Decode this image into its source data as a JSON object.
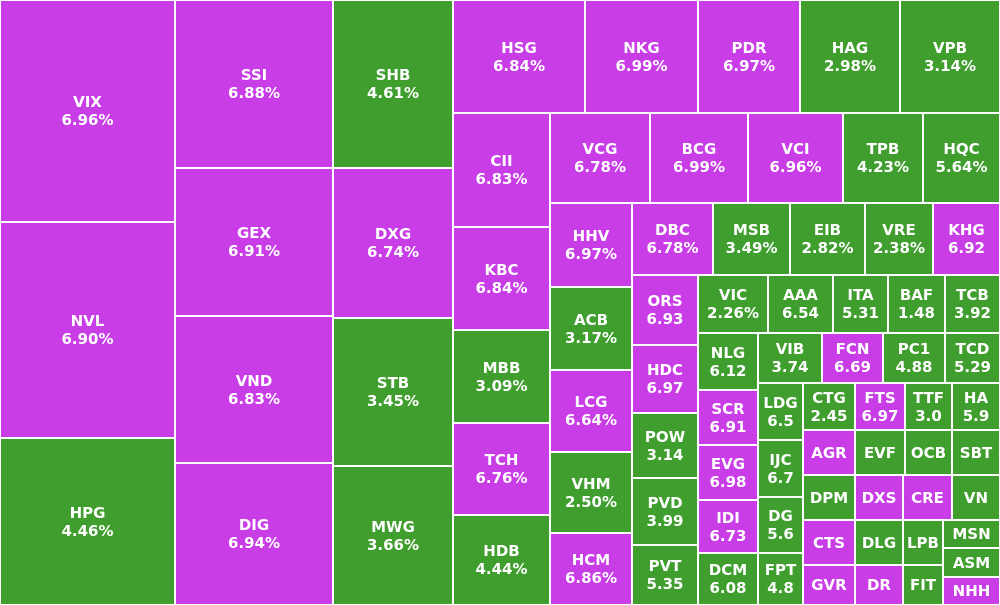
{
  "tiles": [
    {
      "name": "VIX",
      "change": "6.96%",
      "color": "#c83de6"
    },
    {
      "name": "NVL",
      "change": "6.90%",
      "color": "#c83de6"
    },
    {
      "name": "HPG",
      "change": "4.46%",
      "color": "#3f9e2e"
    },
    {
      "name": "SSI",
      "change": "6.88%",
      "color": "#c83de6"
    },
    {
      "name": "GEX",
      "change": "6.91%",
      "color": "#c83de6"
    },
    {
      "name": "VND",
      "change": "6.83%",
      "color": "#c83de6"
    },
    {
      "name": "DIG",
      "change": "6.94%",
      "color": "#c83de6"
    },
    {
      "name": "SHB",
      "change": "4.61%",
      "color": "#3f9e2e"
    },
    {
      "name": "DXG",
      "change": "6.74%",
      "color": "#c83de6"
    },
    {
      "name": "STB",
      "change": "3.45%",
      "color": "#3f9e2e"
    },
    {
      "name": "MWG",
      "change": "3.66%",
      "color": "#3f9e2e"
    },
    {
      "name": "HSG",
      "change": "6.84%",
      "color": "#c83de6"
    },
    {
      "name": "NKG",
      "change": "6.99%",
      "color": "#c83de6"
    },
    {
      "name": "PDR",
      "change": "6.97%",
      "color": "#c83de6"
    },
    {
      "name": "HAG",
      "change": "2.98%",
      "color": "#3f9e2e"
    },
    {
      "name": "VPB",
      "change": "3.14%",
      "color": "#3f9e2e"
    },
    {
      "name": "CII",
      "change": "6.83%",
      "color": "#c83de6"
    },
    {
      "name": "KBC",
      "change": "6.84%",
      "color": "#c83de6"
    },
    {
      "name": "MBB",
      "change": "3.09%",
      "color": "#3f9e2e"
    },
    {
      "name": "TCH",
      "change": "6.76%",
      "color": "#c83de6"
    },
    {
      "name": "HDB",
      "change": "4.44%",
      "color": "#3f9e2e"
    },
    {
      "name": "VCG",
      "change": "6.78%",
      "color": "#c83de6"
    },
    {
      "name": "BCG",
      "change": "6.99%",
      "color": "#c83de6"
    },
    {
      "name": "VCI",
      "change": "6.96%",
      "color": "#c83de6"
    },
    {
      "name": "TPB",
      "change": "4.23%",
      "color": "#3f9e2e"
    },
    {
      "name": "HQC",
      "change": "5.64%",
      "color": "#3f9e2e"
    },
    {
      "name": "HHV",
      "change": "6.97%",
      "color": "#c83de6"
    },
    {
      "name": "ACB",
      "change": "3.17%",
      "color": "#3f9e2e"
    },
    {
      "name": "LCG",
      "change": "6.64%",
      "color": "#c83de6"
    },
    {
      "name": "VHM",
      "change": "2.50%",
      "color": "#3f9e2e"
    },
    {
      "name": "HCM",
      "change": "6.86%",
      "color": "#c83de6"
    },
    {
      "name": "DBC",
      "change": "6.78%",
      "color": "#c83de6"
    },
    {
      "name": "MSB",
      "change": "3.49%",
      "color": "#3f9e2e"
    },
    {
      "name": "EIB",
      "change": "2.82%",
      "color": "#3f9e2e"
    },
    {
      "name": "VRE",
      "change": "2.38%",
      "color": "#3f9e2e"
    },
    {
      "name": "KHG",
      "change": "6.92",
      "color": "#c83de6"
    },
    {
      "name": "ORS",
      "change": "6.93",
      "color": "#c83de6"
    },
    {
      "name": "HDC",
      "change": "6.97",
      "color": "#c83de6"
    },
    {
      "name": "POW",
      "change": "3.14",
      "color": "#3f9e2e"
    },
    {
      "name": "PVD",
      "change": "3.99",
      "color": "#3f9e2e"
    },
    {
      "name": "PVT",
      "change": "5.35",
      "color": "#3f9e2e"
    },
    {
      "name": "VIC",
      "change": "2.26%",
      "color": "#3f9e2e"
    },
    {
      "name": "AAA",
      "change": "6.54",
      "color": "#3f9e2e"
    },
    {
      "name": "ITA",
      "change": "5.31",
      "color": "#3f9e2e"
    },
    {
      "name": "BAF",
      "change": "1.48",
      "color": "#3f9e2e"
    },
    {
      "name": "TCB",
      "change": "3.92",
      "color": "#3f9e2e"
    },
    {
      "name": "NLG",
      "change": "6.12",
      "color": "#3f9e2e"
    },
    {
      "name": "SCR",
      "change": "6.91",
      "color": "#c83de6"
    },
    {
      "name": "EVG",
      "change": "6.98",
      "color": "#c83de6"
    },
    {
      "name": "IDI",
      "change": "6.73",
      "color": "#c83de6"
    },
    {
      "name": "DCM",
      "change": "6.08",
      "color": "#3f9e2e"
    },
    {
      "name": "VIB",
      "change": "3.74",
      "color": "#3f9e2e"
    },
    {
      "name": "FCN",
      "change": "6.69",
      "color": "#c83de6"
    },
    {
      "name": "PC1",
      "change": "4.88",
      "color": "#3f9e2e"
    },
    {
      "name": "TCD",
      "change": "5.29",
      "color": "#3f9e2e"
    },
    {
      "name": "LDG",
      "change": "6.5",
      "color": "#3f9e2e"
    },
    {
      "name": "IJC",
      "change": "6.7",
      "color": "#3f9e2e"
    },
    {
      "name": "DG",
      "change": "5.6",
      "color": "#3f9e2e"
    },
    {
      "name": "FPT",
      "change": "4.8",
      "color": "#3f9e2e"
    },
    {
      "name": "CTG",
      "change": "2.45",
      "color": "#3f9e2e"
    },
    {
      "name": "FTS",
      "change": "6.97",
      "color": "#c83de6"
    },
    {
      "name": "TTF",
      "change": "3.0",
      "color": "#3f9e2e"
    },
    {
      "name": "HA",
      "change": "5.9",
      "color": "#3f9e2e"
    },
    {
      "name": "AGR",
      "color": "#c83de6"
    },
    {
      "name": "EVF",
      "color": "#3f9e2e"
    },
    {
      "name": "OCB",
      "color": "#3f9e2e"
    },
    {
      "name": "SBT",
      "color": "#3f9e2e"
    },
    {
      "name": "DPM",
      "color": "#3f9e2e"
    },
    {
      "name": "DXS",
      "color": "#c83de6"
    },
    {
      "name": "CRE",
      "color": "#c83de6"
    },
    {
      "name": "VN",
      "color": "#3f9e2e"
    },
    {
      "name": "CTS",
      "color": "#c83de6"
    },
    {
      "name": "DLG",
      "color": "#3f9e2e"
    },
    {
      "name": "LPB",
      "color": "#3f9e2e"
    },
    {
      "name": "MSN",
      "color": "#3f9e2e"
    },
    {
      "name": "GVR",
      "color": "#c83de6"
    },
    {
      "name": "DR",
      "color": "#c83de6"
    },
    {
      "name": "FIT",
      "color": "#3f9e2e"
    },
    {
      "name": "ASM",
      "color": "#3f9e2e"
    },
    {
      "name": "NHH",
      "color": "#c83de6"
    }
  ]
}
